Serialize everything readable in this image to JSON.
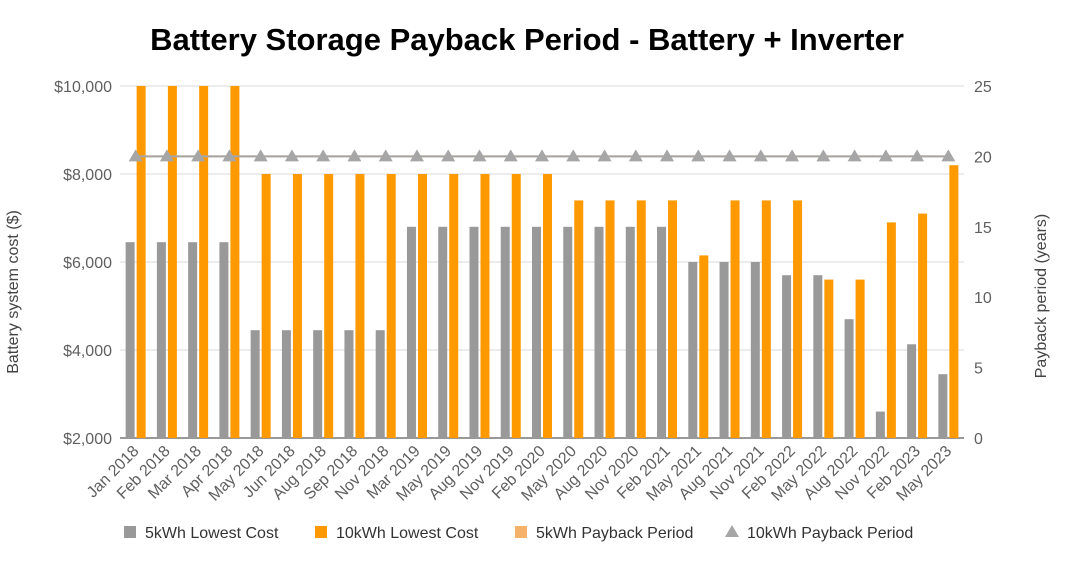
{
  "chart_data": {
    "type": "bar",
    "title": "Battery Storage Payback Period - Battery + Inverter",
    "categories": [
      "Jan 2018",
      "Feb 2018",
      "Mar 2018",
      "Apr 2018",
      "May 2018",
      "Jun 2018",
      "Aug 2018",
      "Sep 2018",
      "Nov 2018",
      "Mar 2019",
      "May 2019",
      "Aug 2019",
      "Nov 2019",
      "Feb 2020",
      "May 2020",
      "Aug 2020",
      "Nov 2020",
      "Feb 2021",
      "May 2021",
      "Aug 2021",
      "Nov 2021",
      "Feb 2022",
      "May 2022",
      "Aug 2022",
      "Nov 2022",
      "Feb 2023",
      "May 2023"
    ],
    "left_axis": {
      "label": "Battery system cost ($)",
      "ylim": [
        2000,
        10000
      ],
      "ticks": [
        2000,
        4000,
        6000,
        8000,
        10000
      ],
      "tick_labels": [
        "$2,000",
        "$4,000",
        "$6,000",
        "$8,000",
        "$10,000"
      ]
    },
    "right_axis": {
      "label": "Payback period (years)",
      "ylim": [
        0,
        25
      ],
      "ticks": [
        0,
        5,
        10,
        15,
        20,
        25
      ],
      "tick_labels": [
        "0",
        "5",
        "10",
        "15",
        "20",
        "25"
      ]
    },
    "series": [
      {
        "name": "5kWh Lowest Cost",
        "type": "bar",
        "axis": "left",
        "color": "#999999",
        "values": [
          6450,
          6450,
          6450,
          6450,
          4450,
          4450,
          4450,
          4450,
          4450,
          6800,
          6800,
          6800,
          6800,
          6800,
          6800,
          6800,
          6800,
          6800,
          6000,
          6000,
          6000,
          5700,
          5700,
          4700,
          2600,
          4130,
          3450
        ]
      },
      {
        "name": "10kWh Lowest Cost",
        "type": "bar",
        "axis": "left",
        "color": "#ff9900",
        "values": [
          10000,
          10000,
          10000,
          10000,
          8000,
          8000,
          8000,
          8000,
          8000,
          8000,
          8000,
          8000,
          8000,
          8000,
          7400,
          7400,
          7400,
          7400,
          6150,
          7400,
          7400,
          7400,
          5600,
          5600,
          6900,
          7100,
          8200
        ]
      },
      {
        "name": "5kWh Payback Period",
        "type": "line",
        "axis": "right",
        "color": "#f6b26b",
        "values": [
          20,
          20,
          20,
          20,
          20,
          20,
          20,
          20,
          20,
          20,
          20,
          20,
          20,
          20,
          20,
          20,
          20,
          20,
          20,
          20,
          20,
          20,
          20,
          20,
          20,
          20,
          20
        ]
      },
      {
        "name": "10kWh Payback Period",
        "type": "line",
        "axis": "right",
        "color": "#a6a6a6",
        "values": [
          20,
          20,
          20,
          20,
          20,
          20,
          20,
          20,
          20,
          20,
          20,
          20,
          20,
          20,
          20,
          20,
          20,
          20,
          20,
          20,
          20,
          20,
          20,
          20,
          20,
          20,
          20
        ]
      }
    ],
    "grid": true,
    "legend_position": "bottom"
  }
}
